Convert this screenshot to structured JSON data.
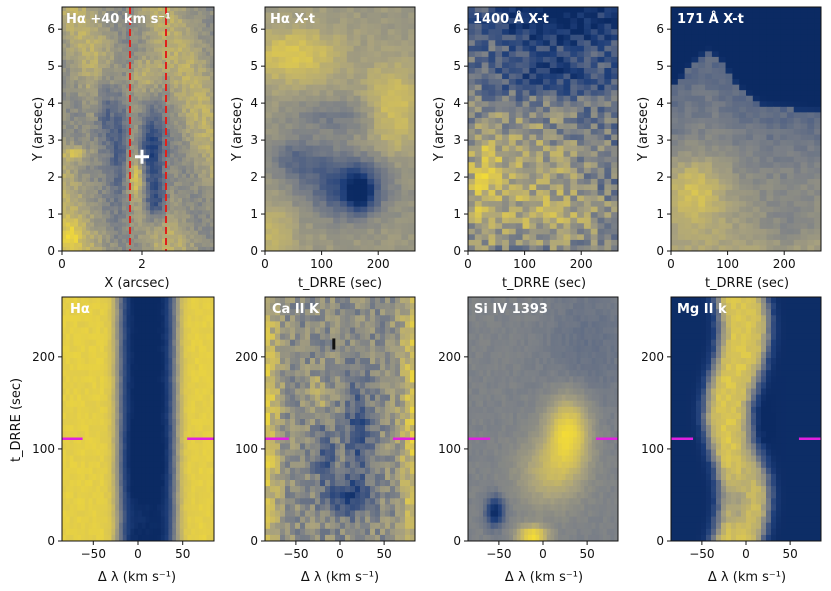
{
  "figure": {
    "colormap": [
      "#0b2a63",
      "#1f3f7a",
      "#4c5e83",
      "#7e8287",
      "#a9a27e",
      "#d3c05a",
      "#f4dc35"
    ],
    "colors": {
      "white": "#ffffff",
      "red": "#e0201b",
      "magenta": "#e020e0",
      "black": "#111111"
    }
  },
  "chart_data": [
    {
      "id": "p1",
      "type": "heatmap",
      "title": "Hα +40 km s⁻¹",
      "xlabel": "X (arcsec)",
      "ylabel": "Y (arcsec)",
      "xlim": [
        0,
        3.8
      ],
      "ylim": [
        0,
        6.6
      ],
      "xticks": [
        0,
        2
      ],
      "xtick_labels": [
        "0",
        "2"
      ],
      "yticks": [
        0,
        1,
        2,
        3,
        4,
        5,
        6
      ],
      "ytick_labels": [
        "0",
        "1",
        "2",
        "3",
        "4",
        "5",
        "6"
      ],
      "vlines": [
        1.7,
        2.6
      ],
      "marker": {
        "symbol": "+",
        "x": 2.0,
        "y": 2.55
      }
    },
    {
      "id": "p2",
      "type": "heatmap",
      "title": "Hα X-t",
      "xlabel": "t_DRRE (sec)",
      "ylabel": "Y (arcsec)",
      "xlim": [
        0,
        265
      ],
      "ylim": [
        0,
        6.6
      ],
      "xticks": [
        0,
        100,
        200
      ],
      "xtick_labels": [
        "0",
        "100",
        "200"
      ],
      "yticks": [
        0,
        1,
        2,
        3,
        4,
        5,
        6
      ],
      "ytick_labels": [
        "0",
        "1",
        "2",
        "3",
        "4",
        "5",
        "6"
      ]
    },
    {
      "id": "p3",
      "type": "heatmap",
      "title": "1400 Å X-t",
      "xlabel": "t_DRRE (sec)",
      "ylabel": "Y (arcsec)",
      "xlim": [
        0,
        265
      ],
      "ylim": [
        0,
        6.6
      ],
      "xticks": [
        0,
        100,
        200
      ],
      "xtick_labels": [
        "0",
        "100",
        "200"
      ],
      "yticks": [
        0,
        1,
        2,
        3,
        4,
        5,
        6
      ],
      "ytick_labels": [
        "0",
        "1",
        "2",
        "3",
        "4",
        "5",
        "6"
      ]
    },
    {
      "id": "p4",
      "type": "heatmap",
      "title": "171 Å X-t",
      "xlabel": "t_DRRE (sec)",
      "ylabel": "Y (arcsec)",
      "xlim": [
        0,
        265
      ],
      "ylim": [
        0,
        6.6
      ],
      "xticks": [
        0,
        100,
        200
      ],
      "xtick_labels": [
        "0",
        "100",
        "200"
      ],
      "yticks": [
        0,
        1,
        2,
        3,
        4,
        5,
        6
      ],
      "ytick_labels": [
        "0",
        "1",
        "2",
        "3",
        "4",
        "5",
        "6"
      ]
    },
    {
      "id": "p5",
      "type": "heatmap",
      "title": "Hα",
      "xlabel": "Δ λ (km s⁻¹)",
      "ylabel": "t_DRRE (sec)",
      "xlim": [
        -85,
        85
      ],
      "ylim": [
        0,
        265
      ],
      "xticks": [
        -50,
        0,
        50
      ],
      "xtick_labels": [
        "−50",
        "0",
        "50"
      ],
      "yticks": [
        0,
        100,
        200
      ],
      "ytick_labels": [
        "0",
        "100",
        "200"
      ],
      "markers": [
        {
          "x0": -85,
          "x1": -62,
          "y": 111
        },
        {
          "x0": 55,
          "x1": 85,
          "y": 111
        }
      ]
    },
    {
      "id": "p6",
      "type": "heatmap",
      "title": "Ca II K",
      "xlabel": "Δ λ (km s⁻¹)",
      "ylabel": "",
      "xlim": [
        -85,
        85
      ],
      "ylim": [
        0,
        265
      ],
      "xticks": [
        -50,
        0,
        50
      ],
      "xtick_labels": [
        "−50",
        "0",
        "50"
      ],
      "yticks": [
        0,
        100,
        200
      ],
      "ytick_labels": [
        "0",
        "100",
        "200"
      ],
      "markers": [
        {
          "x0": -85,
          "x1": -58,
          "y": 111
        },
        {
          "x0": 60,
          "x1": 85,
          "y": 111
        }
      ],
      "tick_mark": {
        "x": -7,
        "y0": 208,
        "y1": 220
      }
    },
    {
      "id": "p7",
      "type": "heatmap",
      "title": "Si IV 1393",
      "xlabel": "Δ λ (km s⁻¹)",
      "ylabel": "",
      "xlim": [
        -85,
        85
      ],
      "ylim": [
        0,
        265
      ],
      "xticks": [
        -50,
        0,
        50
      ],
      "xtick_labels": [
        "−50",
        "0",
        "50"
      ],
      "yticks": [
        0,
        100,
        200
      ],
      "ytick_labels": [
        "0",
        "100",
        "200"
      ],
      "markers": [
        {
          "x0": -85,
          "x1": -60,
          "y": 111
        },
        {
          "x0": 60,
          "x1": 85,
          "y": 111
        }
      ]
    },
    {
      "id": "p8",
      "type": "heatmap",
      "title": "Mg II k",
      "xlabel": "Δ λ (km s⁻¹)",
      "ylabel": "",
      "xlim": [
        -85,
        85
      ],
      "ylim": [
        0,
        265
      ],
      "xticks": [
        -50,
        0,
        50
      ],
      "xtick_labels": [
        "−50",
        "0",
        "50"
      ],
      "yticks": [
        0,
        100,
        200
      ],
      "ytick_labels": [
        "0",
        "100",
        "200"
      ],
      "markers": [
        {
          "x0": -85,
          "x1": -60,
          "y": 111
        },
        {
          "x0": 60,
          "x1": 85,
          "y": 111
        }
      ]
    }
  ]
}
